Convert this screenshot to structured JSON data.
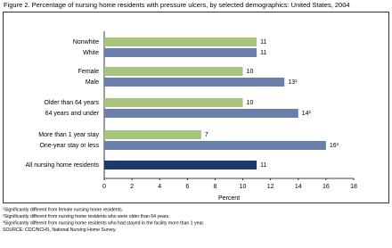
{
  "chart_data": {
    "type": "bar",
    "orientation": "horizontal",
    "title": "Figure 2. Percentage of nursing home residents with pressure ulcers, by selected demographics: United States, 2004",
    "categories": [
      "Nonwhite",
      "White",
      "Female",
      "Male",
      "Older than 64 years",
      "64 years and under",
      "More than 1 year stay",
      "One-year stay or less",
      "All nursing home residents"
    ],
    "values": [
      11,
      11,
      10,
      13,
      10,
      14,
      7,
      16,
      11
    ],
    "value_labels": [
      "11",
      "11",
      "10",
      "13¹",
      "10",
      "14²",
      "7",
      "16³",
      "11"
    ],
    "colors": [
      "#a9c47f",
      "#6a80aa",
      "#a9c47f",
      "#6a80aa",
      "#a9c47f",
      "#6a80aa",
      "#a9c47f",
      "#6a80aa",
      "#1b3a6b"
    ],
    "xlabel": "Percent",
    "xlim": [
      0,
      18
    ],
    "xticks": [
      0,
      2,
      4,
      6,
      8,
      10,
      12,
      14,
      16,
      18
    ],
    "grid": false,
    "footnotes": [
      "¹Significantly different from female nursing home residents.",
      "²Significantly different from nursing home residents who were older than 64 years.",
      "³Significantly different from nursing home residents who had stayed in the facility more than 1 year.",
      "SOURCE: CDC/NCHS, National Nursing Home Survey."
    ]
  }
}
